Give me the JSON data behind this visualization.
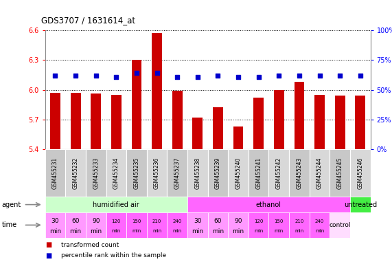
{
  "title": "GDS3707 / 1631614_at",
  "samples": [
    "GSM455231",
    "GSM455232",
    "GSM455233",
    "GSM455234",
    "GSM455235",
    "GSM455236",
    "GSM455237",
    "GSM455238",
    "GSM455239",
    "GSM455240",
    "GSM455241",
    "GSM455242",
    "GSM455243",
    "GSM455244",
    "GSM455245",
    "GSM455246"
  ],
  "transformed_count": [
    5.97,
    5.97,
    5.96,
    5.95,
    6.3,
    6.57,
    5.99,
    5.72,
    5.82,
    5.63,
    5.92,
    6.0,
    6.08,
    5.95,
    5.94,
    5.94
  ],
  "percentile_rank": [
    62,
    62,
    62,
    61,
    64,
    64,
    61,
    61,
    62,
    61,
    61,
    62,
    62,
    62,
    62,
    62
  ],
  "ylim_left": [
    5.4,
    6.6
  ],
  "ylim_right": [
    0,
    100
  ],
  "yticks_left": [
    5.4,
    5.7,
    6.0,
    6.3,
    6.6
  ],
  "yticks_right": [
    0,
    25,
    50,
    75,
    100
  ],
  "agent_groups": [
    {
      "label": "humidified air",
      "start": 0,
      "end": 7,
      "color": "#ccffcc"
    },
    {
      "label": "ethanol",
      "start": 7,
      "end": 15,
      "color": "#ff66ff"
    },
    {
      "label": "untreated",
      "start": 15,
      "end": 16,
      "color": "#44ee44"
    }
  ],
  "time_labels_row1": [
    "30",
    "60",
    "90",
    "120",
    "150",
    "210",
    "240",
    "30",
    "60",
    "90",
    "120",
    "150",
    "210",
    "240",
    "control"
  ],
  "time_labels_row2": [
    "min",
    "min",
    "min",
    "min",
    "min",
    "min",
    "min",
    "min",
    "min",
    "min",
    "min",
    "min",
    "min",
    "min",
    ""
  ],
  "time_colors": [
    "#ff99ff",
    "#ff99ff",
    "#ff99ff",
    "#ff66ff",
    "#ff66ff",
    "#ff66ff",
    "#ff66ff",
    "#ff99ff",
    "#ff99ff",
    "#ff99ff",
    "#ff66ff",
    "#ff66ff",
    "#ff66ff",
    "#ff66ff",
    "#ffddff"
  ],
  "bar_color": "#cc0000",
  "dot_color": "#0000cc",
  "bar_bottom": 5.4,
  "legend_items": [
    {
      "label": "transformed count",
      "color": "#cc0000"
    },
    {
      "label": "percentile rank within the sample",
      "color": "#0000cc"
    }
  ]
}
